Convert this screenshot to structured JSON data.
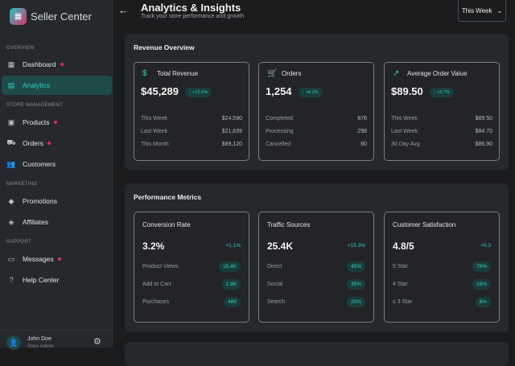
{
  "sidebar": {
    "brand": "Seller Center",
    "sections": [
      {
        "label": "OVERVIEW"
      },
      {
        "label": "STORE MANAGEMENT"
      },
      {
        "label": "MARKETING"
      },
      {
        "label": "SUPPORT"
      }
    ],
    "items": [
      {
        "label": "Dashboard",
        "icon": "dashboard-icon",
        "dot": true
      },
      {
        "label": "Analytics",
        "icon": "analytics-icon",
        "active": true
      },
      {
        "label": "Products",
        "icon": "archive-icon",
        "dot": true
      },
      {
        "label": "Orders",
        "icon": "truck-icon",
        "dot": true
      },
      {
        "label": "Customers",
        "icon": "people-icon"
      },
      {
        "label": "Promotions",
        "icon": "tag-icon"
      },
      {
        "label": "Affiliates",
        "icon": "diamond-icon"
      },
      {
        "label": "Messages",
        "icon": "message-icon",
        "dot": true
      },
      {
        "label": "Help Center",
        "icon": "help-icon"
      }
    ],
    "user": {
      "name": "John Doe",
      "role": "Store Admin"
    }
  },
  "header": {
    "title": "Analytics & Insights",
    "subtitle": "Track your store performance and growth",
    "period": "This Week"
  },
  "revenue": {
    "title": "Revenue Overview",
    "cards": [
      {
        "title": "Total Revenue",
        "value": "$45,289",
        "change": "↑ +12.5%",
        "rows": [
          [
            "This Week",
            "$24,590"
          ],
          [
            "Last Week",
            "$21,839"
          ],
          [
            "This Month",
            "$89,120"
          ]
        ]
      },
      {
        "title": "Orders",
        "value": "1,254",
        "change": "↑ +8.2%",
        "rows": [
          [
            "Completed",
            "876"
          ],
          [
            "Processing",
            "298"
          ],
          [
            "Cancelled",
            "80"
          ]
        ]
      },
      {
        "title": "Average Order Value",
        "value": "$89.50",
        "change": "↑ +5.7%",
        "rows": [
          [
            "This Week",
            "$89.50"
          ],
          [
            "Last Week",
            "$84.70"
          ],
          [
            "30 Day Avg",
            "$86.90"
          ]
        ]
      }
    ]
  },
  "performance": {
    "title": "Performance Metrics",
    "cards": [
      {
        "title": "Conversion Rate",
        "value": "3.2%",
        "change": "+1.1%",
        "rows": [
          [
            "Product Views",
            "15.4K"
          ],
          [
            "Add to Cart",
            "2.8K"
          ],
          [
            "Purchases",
            "486"
          ]
        ]
      },
      {
        "title": "Traffic Sources",
        "value": "25.4K",
        "change": "+15.3%",
        "rows": [
          [
            "Direct",
            "45%"
          ],
          [
            "Social",
            "35%"
          ],
          [
            "Search",
            "20%"
          ]
        ]
      },
      {
        "title": "Customer Satisfaction",
        "value": "4.8/5",
        "change": "+0.3",
        "rows": [
          [
            "5 Star",
            "76%"
          ],
          [
            "4 Star",
            "18%"
          ],
          [
            "≤ 3 Star",
            "6%"
          ]
        ]
      }
    ]
  },
  "colors": {
    "accent": "#2ed3c4",
    "dot": "#e8285c",
    "bg": "#1b1c1e",
    "panel": "#25282c"
  }
}
